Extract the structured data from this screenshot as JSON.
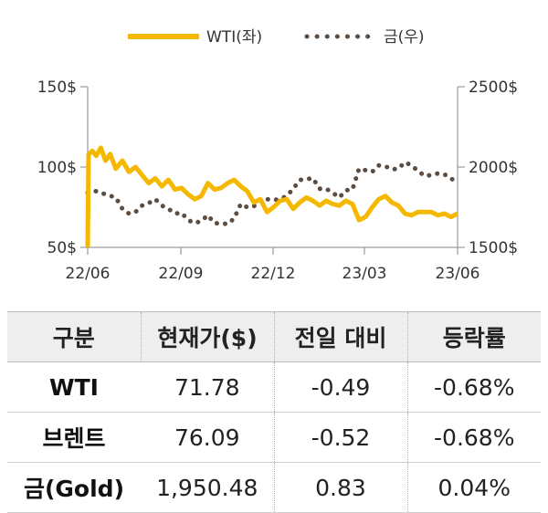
{
  "chart_data": {
    "type": "line",
    "x_ticks": [
      "22/06",
      "22/09",
      "22/12",
      "23/03",
      "23/06"
    ],
    "y_left": {
      "ticks": [
        "50$",
        "100$",
        "150$"
      ],
      "range": [
        50,
        150
      ]
    },
    "y_right": {
      "ticks": [
        "1500$",
        "2000$",
        "2500$"
      ],
      "range": [
        1500,
        2500
      ]
    },
    "series": [
      {
        "name": "WTI(좌)",
        "axis": "left",
        "color": "#f5b800",
        "style": "solid",
        "values": [
          [
            "2022-06-01",
            50
          ],
          [
            "2022-06-02",
            108
          ],
          [
            "2022-06-06",
            110
          ],
          [
            "2022-06-10",
            107
          ],
          [
            "2022-06-15",
            112
          ],
          [
            "2022-06-20",
            104
          ],
          [
            "2022-06-25",
            108
          ],
          [
            "2022-07-01",
            99
          ],
          [
            "2022-07-08",
            104
          ],
          [
            "2022-07-15",
            97
          ],
          [
            "2022-07-22",
            100
          ],
          [
            "2022-07-29",
            95
          ],
          [
            "2022-08-05",
            90
          ],
          [
            "2022-08-12",
            93
          ],
          [
            "2022-08-19",
            88
          ],
          [
            "2022-08-26",
            92
          ],
          [
            "2022-09-02",
            86
          ],
          [
            "2022-09-09",
            87
          ],
          [
            "2022-09-16",
            83
          ],
          [
            "2022-09-23",
            80
          ],
          [
            "2022-09-30",
            82
          ],
          [
            "2022-10-07",
            90
          ],
          [
            "2022-10-14",
            86
          ],
          [
            "2022-10-21",
            87
          ],
          [
            "2022-10-28",
            90
          ],
          [
            "2022-11-04",
            92
          ],
          [
            "2022-11-11",
            88
          ],
          [
            "2022-11-18",
            85
          ],
          [
            "2022-11-25",
            78
          ],
          [
            "2022-12-02",
            80
          ],
          [
            "2022-12-09",
            72
          ],
          [
            "2022-12-16",
            75
          ],
          [
            "2022-12-23",
            79
          ],
          [
            "2022-12-30",
            80
          ],
          [
            "2023-01-06",
            74
          ],
          [
            "2023-01-13",
            78
          ],
          [
            "2023-01-20",
            81
          ],
          [
            "2023-01-27",
            79
          ],
          [
            "2023-02-03",
            76
          ],
          [
            "2023-02-10",
            79
          ],
          [
            "2023-02-17",
            77
          ],
          [
            "2023-02-24",
            76
          ],
          [
            "2023-03-03",
            79
          ],
          [
            "2023-03-10",
            77
          ],
          [
            "2023-03-17",
            67
          ],
          [
            "2023-03-24",
            69
          ],
          [
            "2023-03-31",
            75
          ],
          [
            "2023-04-07",
            80
          ],
          [
            "2023-04-14",
            82
          ],
          [
            "2023-04-21",
            78
          ],
          [
            "2023-04-28",
            76
          ],
          [
            "2023-05-05",
            71
          ],
          [
            "2023-05-12",
            70
          ],
          [
            "2023-05-19",
            72
          ],
          [
            "2023-05-26",
            72
          ],
          [
            "2023-06-02",
            72
          ],
          [
            "2023-06-09",
            70
          ],
          [
            "2023-06-16",
            71
          ],
          [
            "2023-06-23",
            69
          ],
          [
            "2023-06-30",
            71
          ]
        ]
      },
      {
        "name": "금(우)",
        "axis": "right",
        "color": "#5c4d42",
        "style": "dotted",
        "values": [
          [
            "2022-06-01",
            1840
          ],
          [
            "2022-06-10",
            1850
          ],
          [
            "2022-06-20",
            1830
          ],
          [
            "2022-07-01",
            1810
          ],
          [
            "2022-07-08",
            1740
          ],
          [
            "2022-07-15",
            1710
          ],
          [
            "2022-07-22",
            1720
          ],
          [
            "2022-07-29",
            1760
          ],
          [
            "2022-08-05",
            1775
          ],
          [
            "2022-08-12",
            1800
          ],
          [
            "2022-08-19",
            1760
          ],
          [
            "2022-08-26",
            1740
          ],
          [
            "2022-09-02",
            1710
          ],
          [
            "2022-09-09",
            1715
          ],
          [
            "2022-09-16",
            1670
          ],
          [
            "2022-09-23",
            1650
          ],
          [
            "2022-09-30",
            1665
          ],
          [
            "2022-10-07",
            1700
          ],
          [
            "2022-10-14",
            1650
          ],
          [
            "2022-10-21",
            1650
          ],
          [
            "2022-10-28",
            1645
          ],
          [
            "2022-11-04",
            1680
          ],
          [
            "2022-11-11",
            1770
          ],
          [
            "2022-11-18",
            1750
          ],
          [
            "2022-11-25",
            1755
          ],
          [
            "2022-12-02",
            1800
          ],
          [
            "2022-12-09",
            1800
          ],
          [
            "2022-12-16",
            1795
          ],
          [
            "2022-12-23",
            1800
          ],
          [
            "2022-12-30",
            1820
          ],
          [
            "2023-01-06",
            1865
          ],
          [
            "2023-01-13",
            1920
          ],
          [
            "2023-01-20",
            1925
          ],
          [
            "2023-01-27",
            1930
          ],
          [
            "2023-02-03",
            1865
          ],
          [
            "2023-02-10",
            1865
          ],
          [
            "2023-02-17",
            1840
          ],
          [
            "2023-02-24",
            1810
          ],
          [
            "2023-03-03",
            1855
          ],
          [
            "2023-03-10",
            1860
          ],
          [
            "2023-03-17",
            1990
          ],
          [
            "2023-03-24",
            1980
          ],
          [
            "2023-03-31",
            1970
          ],
          [
            "2023-04-07",
            2010
          ],
          [
            "2023-04-14",
            2005
          ],
          [
            "2023-04-21",
            1985
          ],
          [
            "2023-04-28",
            1990
          ],
          [
            "2023-05-05",
            2030
          ],
          [
            "2023-05-12",
            2010
          ],
          [
            "2023-05-19",
            1975
          ],
          [
            "2023-05-26",
            1945
          ],
          [
            "2023-06-02",
            1950
          ],
          [
            "2023-06-09",
            1960
          ],
          [
            "2023-06-16",
            1955
          ],
          [
            "2023-06-23",
            1925
          ],
          [
            "2023-06-30",
            1920
          ]
        ]
      }
    ],
    "grid": false,
    "legend_position": "top"
  },
  "table": {
    "headers": [
      "구분",
      "현재가($)",
      "전일 대비",
      "등락률"
    ],
    "rows": [
      {
        "label": "WTI",
        "price": "71.78",
        "change": "-0.49",
        "rate": "-0.68%"
      },
      {
        "label": "브렌트",
        "price": "76.09",
        "change": "-0.52",
        "rate": "-0.68%"
      },
      {
        "label": "금(Gold)",
        "price": "1,950.48",
        "change": "0.83",
        "rate": "0.04%"
      }
    ]
  }
}
